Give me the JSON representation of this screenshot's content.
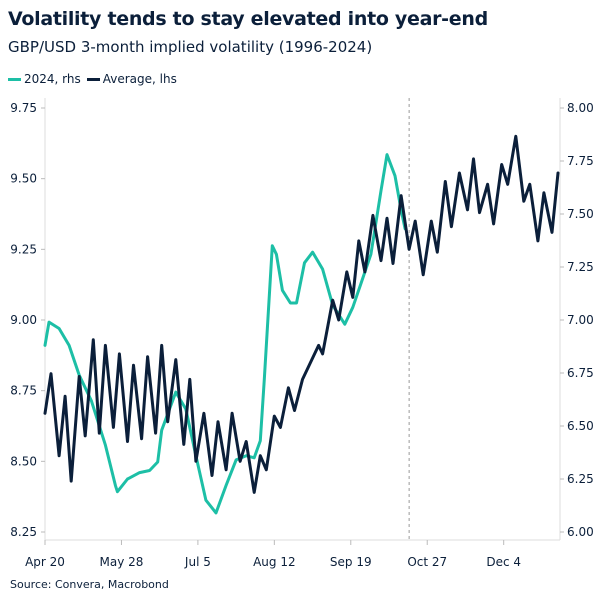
{
  "chart_data": {
    "type": "line",
    "title": "Volatility tends to stay elevated into year-end",
    "subtitle": "GBP/USD 3-month implied volatility (1996-2024)",
    "source": "Source: Convera, Macrobond",
    "x_range": [
      "2024-04-20",
      "2024-12-31"
    ],
    "x_ticks": [
      {
        "date": "2024-04-20",
        "label": "Apr 20"
      },
      {
        "date": "2024-05-28",
        "label": "May 28"
      },
      {
        "date": "2024-07-05",
        "label": "Jul 5"
      },
      {
        "date": "2024-08-12",
        "label": "Aug 12"
      },
      {
        "date": "2024-09-19",
        "label": "Sep 19"
      },
      {
        "date": "2024-10-27",
        "label": "Oct 27"
      },
      {
        "date": "2024-12-04",
        "label": "Dec 4"
      }
    ],
    "y_left": {
      "range": [
        8.25,
        9.75
      ],
      "ticks": [
        "8.25",
        "8.50",
        "8.75",
        "9.00",
        "9.25",
        "9.50",
        "9.75"
      ]
    },
    "y_right": {
      "range": [
        6.0,
        8.0
      ],
      "ticks": [
        "6.00",
        "6.25",
        "6.50",
        "6.75",
        "7.00",
        "7.25",
        "7.50",
        "7.75",
        "8.00"
      ]
    },
    "grid": false,
    "legend_position": "top-left",
    "vline_date": "2024-10-18",
    "series": [
      {
        "name": "2024, rhs",
        "axis": "right",
        "color": "#1dbfa6",
        "points": [
          [
            "2024-04-20",
            6.88
          ],
          [
            "2024-04-22",
            6.99
          ],
          [
            "2024-04-27",
            6.96
          ],
          [
            "2024-05-02",
            6.88
          ],
          [
            "2024-05-07",
            6.74
          ],
          [
            "2024-05-13",
            6.62
          ],
          [
            "2024-05-20",
            6.41
          ],
          [
            "2024-05-25",
            6.22
          ],
          [
            "2024-05-26",
            6.19
          ],
          [
            "2024-05-31",
            6.25
          ],
          [
            "2024-06-06",
            6.28
          ],
          [
            "2024-06-11",
            6.29
          ],
          [
            "2024-06-15",
            6.33
          ],
          [
            "2024-06-17",
            6.48
          ],
          [
            "2024-06-24",
            6.66
          ],
          [
            "2024-06-29",
            6.58
          ],
          [
            "2024-07-04",
            6.36
          ],
          [
            "2024-07-09",
            6.15
          ],
          [
            "2024-07-14",
            6.09
          ],
          [
            "2024-07-19",
            6.22
          ],
          [
            "2024-07-24",
            6.34
          ],
          [
            "2024-07-29",
            6.36
          ],
          [
            "2024-08-02",
            6.35
          ],
          [
            "2024-08-05",
            6.43
          ],
          [
            "2024-08-07",
            6.72
          ],
          [
            "2024-08-11",
            7.35
          ],
          [
            "2024-08-13",
            7.31
          ],
          [
            "2024-08-16",
            7.14
          ],
          [
            "2024-08-20",
            7.08
          ],
          [
            "2024-08-23",
            7.08
          ],
          [
            "2024-08-27",
            7.27
          ],
          [
            "2024-08-31",
            7.32
          ],
          [
            "2024-09-05",
            7.24
          ],
          [
            "2024-09-10",
            7.07
          ],
          [
            "2024-09-16",
            6.98
          ],
          [
            "2024-09-20",
            7.06
          ],
          [
            "2024-09-24",
            7.17
          ],
          [
            "2024-09-29",
            7.31
          ],
          [
            "2024-10-04",
            7.61
          ],
          [
            "2024-10-07",
            7.78
          ],
          [
            "2024-10-11",
            7.68
          ],
          [
            "2024-10-14",
            7.52
          ],
          [
            "2024-10-16",
            7.43
          ]
        ]
      },
      {
        "name": "Average, lhs",
        "axis": "left",
        "color": "#0b1f3a",
        "points": [
          [
            "2024-04-20",
            8.67
          ],
          [
            "2024-04-23",
            8.81
          ],
          [
            "2024-04-27",
            8.52
          ],
          [
            "2024-04-30",
            8.73
          ],
          [
            "2024-05-03",
            8.43
          ],
          [
            "2024-05-07",
            8.8
          ],
          [
            "2024-05-10",
            8.59
          ],
          [
            "2024-05-14",
            8.93
          ],
          [
            "2024-05-17",
            8.6
          ],
          [
            "2024-05-20",
            8.91
          ],
          [
            "2024-05-24",
            8.62
          ],
          [
            "2024-05-27",
            8.88
          ],
          [
            "2024-05-31",
            8.57
          ],
          [
            "2024-06-03",
            8.84
          ],
          [
            "2024-06-07",
            8.58
          ],
          [
            "2024-06-10",
            8.87
          ],
          [
            "2024-06-14",
            8.6
          ],
          [
            "2024-06-17",
            8.91
          ],
          [
            "2024-06-20",
            8.64
          ],
          [
            "2024-06-24",
            8.86
          ],
          [
            "2024-06-28",
            8.56
          ],
          [
            "2024-07-01",
            8.79
          ],
          [
            "2024-07-04",
            8.5
          ],
          [
            "2024-07-08",
            8.67
          ],
          [
            "2024-07-12",
            8.45
          ],
          [
            "2024-07-15",
            8.64
          ],
          [
            "2024-07-19",
            8.47
          ],
          [
            "2024-07-22",
            8.67
          ],
          [
            "2024-07-26",
            8.5
          ],
          [
            "2024-07-29",
            8.57
          ],
          [
            "2024-08-02",
            8.39
          ],
          [
            "2024-08-05",
            8.52
          ],
          [
            "2024-08-08",
            8.47
          ],
          [
            "2024-08-12",
            8.66
          ],
          [
            "2024-08-15",
            8.62
          ],
          [
            "2024-08-19",
            8.76
          ],
          [
            "2024-08-22",
            8.68
          ],
          [
            "2024-08-26",
            8.79
          ],
          [
            "2024-09-03",
            8.91
          ],
          [
            "2024-09-05",
            8.88
          ],
          [
            "2024-09-10",
            9.07
          ],
          [
            "2024-09-13",
            9.0
          ],
          [
            "2024-09-17",
            9.17
          ],
          [
            "2024-09-20",
            9.08
          ],
          [
            "2024-09-23",
            9.28
          ],
          [
            "2024-09-26",
            9.17
          ],
          [
            "2024-09-30",
            9.37
          ],
          [
            "2024-10-04",
            9.21
          ],
          [
            "2024-10-07",
            9.36
          ],
          [
            "2024-10-10",
            9.2
          ],
          [
            "2024-10-14",
            9.44
          ],
          [
            "2024-10-18",
            9.25
          ],
          [
            "2024-10-21",
            9.35
          ],
          [
            "2024-10-25",
            9.16
          ],
          [
            "2024-10-29",
            9.35
          ],
          [
            "2024-11-01",
            9.24
          ],
          [
            "2024-11-05",
            9.49
          ],
          [
            "2024-11-08",
            9.33
          ],
          [
            "2024-11-12",
            9.52
          ],
          [
            "2024-11-16",
            9.39
          ],
          [
            "2024-11-19",
            9.57
          ],
          [
            "2024-11-22",
            9.38
          ],
          [
            "2024-11-26",
            9.48
          ],
          [
            "2024-11-29",
            9.34
          ],
          [
            "2024-12-03",
            9.55
          ],
          [
            "2024-12-06",
            9.48
          ],
          [
            "2024-12-10",
            9.65
          ],
          [
            "2024-12-14",
            9.42
          ],
          [
            "2024-12-17",
            9.48
          ],
          [
            "2024-12-21",
            9.28
          ],
          [
            "2024-12-24",
            9.45
          ],
          [
            "2024-12-28",
            9.31
          ],
          [
            "2024-12-31",
            9.52
          ]
        ]
      }
    ]
  }
}
